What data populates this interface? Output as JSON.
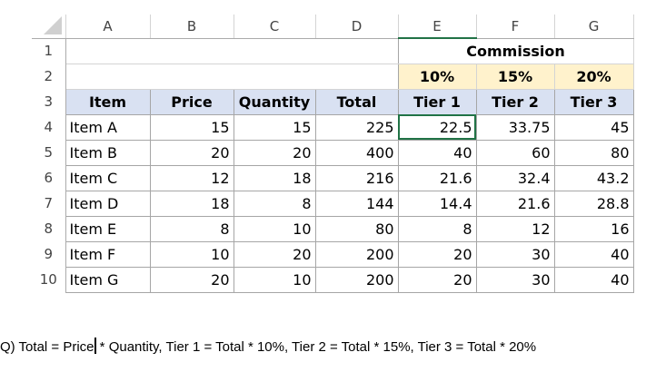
{
  "columns": [
    "A",
    "B",
    "C",
    "D",
    "E",
    "F",
    "G"
  ],
  "active_cell": "E4",
  "colors": {
    "header_fill": "#d9e1f2",
    "percent_fill": "#fff2cc",
    "selection": "#217346"
  },
  "commission_label": "Commission",
  "percents": [
    "10%",
    "15%",
    "20%"
  ],
  "headers": [
    "Item",
    "Price",
    "Quantity",
    "Total",
    "Tier 1",
    "Tier 2",
    "Tier 3"
  ],
  "rows": [
    {
      "row": "4",
      "cells": [
        "Item A",
        "15",
        "15",
        "225",
        "22.5",
        "33.75",
        "45"
      ]
    },
    {
      "row": "5",
      "cells": [
        "Item B",
        "20",
        "20",
        "400",
        "40",
        "60",
        "80"
      ]
    },
    {
      "row": "6",
      "cells": [
        "Item C",
        "12",
        "18",
        "216",
        "21.6",
        "32.4",
        "43.2"
      ]
    },
    {
      "row": "7",
      "cells": [
        "Item D",
        "18",
        "8",
        "144",
        "14.4",
        "21.6",
        "28.8"
      ]
    },
    {
      "row": "8",
      "cells": [
        "Item E",
        "8",
        "10",
        "80",
        "8",
        "12",
        "16"
      ]
    },
    {
      "row": "9",
      "cells": [
        "Item F",
        "10",
        "20",
        "200",
        "20",
        "30",
        "40"
      ]
    },
    {
      "row": "10",
      "cells": [
        "Item G",
        "20",
        "10",
        "200",
        "20",
        "30",
        "40"
      ]
    }
  ],
  "row_numbers": [
    "1",
    "2",
    "3"
  ],
  "formula_text_before": "Q) Total = Price",
  "formula_text_after": " * Quantity, Tier 1 = Total * 10%, Tier 2 = Total * 15%, Tier 3 = Total * 20%"
}
